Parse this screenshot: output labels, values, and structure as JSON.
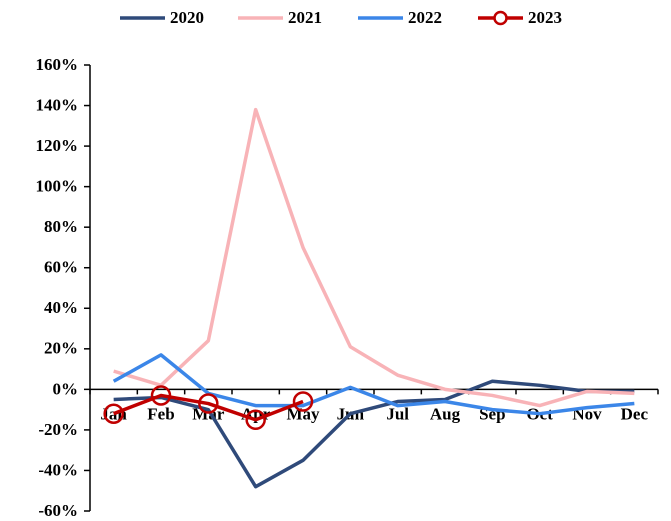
{
  "chart_data": {
    "type": "line",
    "categories": [
      "Jan",
      "Feb",
      "Mar",
      "Apr",
      "May",
      "Jun",
      "Jul",
      "Aug",
      "Sep",
      "Oct",
      "Nov",
      "Dec"
    ],
    "series": [
      {
        "name": "2020",
        "color": "#2f4a7a",
        "values": [
          -5,
          -4,
          -10,
          -48,
          -35,
          -12,
          -6,
          -5,
          4,
          2,
          -1,
          -1
        ]
      },
      {
        "name": "2021",
        "color": "#f8b3b7",
        "values": [
          9,
          2,
          24,
          138,
          70,
          21,
          7,
          0,
          -3,
          -8,
          -1,
          -2
        ]
      },
      {
        "name": "2022",
        "color": "#3b86e8",
        "values": [
          4,
          17,
          -2,
          -8,
          -8,
          1,
          -8,
          -6,
          -10,
          -12,
          -9,
          -7
        ]
      },
      {
        "name": "2023",
        "color": "#c00000",
        "marker": "circle",
        "values": [
          -12,
          -3,
          -7,
          -15,
          -6,
          null,
          null,
          null,
          null,
          null,
          null,
          null
        ]
      }
    ],
    "ylim": [
      -60,
      160
    ],
    "yticks": [
      {
        "value": -60,
        "label": "-60%"
      },
      {
        "value": -40,
        "label": "-40%"
      },
      {
        "value": -20,
        "label": "-20%"
      },
      {
        "value": 0,
        "label": "0%"
      },
      {
        "value": 20,
        "label": "20%"
      },
      {
        "value": 40,
        "label": "40%"
      },
      {
        "value": 60,
        "label": "60%"
      },
      {
        "value": 80,
        "label": "80%"
      },
      {
        "value": 100,
        "label": "100%"
      },
      {
        "value": 120,
        "label": "120%"
      },
      {
        "value": 140,
        "label": "140%"
      },
      {
        "value": 160,
        "label": "160%"
      }
    ],
    "legend": "top",
    "grid": false
  }
}
